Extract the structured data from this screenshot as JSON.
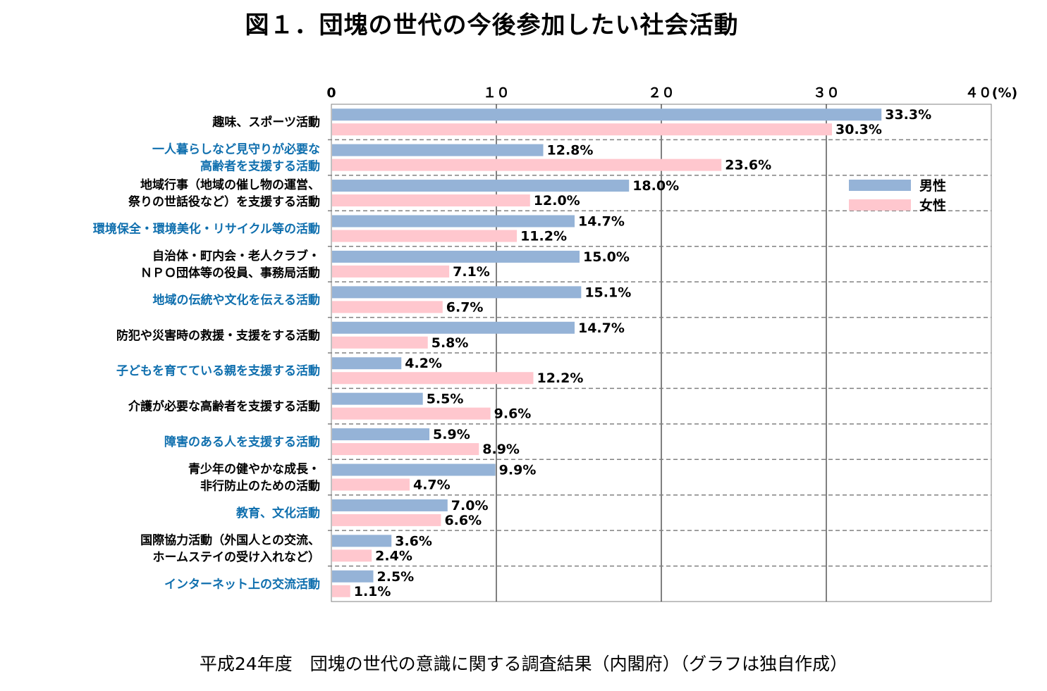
{
  "title": "図１．団塊の世代の今後参加したい社会活動",
  "source": "平成24年度　団塊の世代の意識に関する調査結果（内閣府）（グラフは独自作成）",
  "chart_data": {
    "type": "bar",
    "orientation": "horizontal",
    "xlim": [
      0,
      40
    ],
    "ticks": [
      0,
      10,
      20,
      30,
      40
    ],
    "tick_labels": [
      "0",
      "１０",
      "２０",
      "３０",
      "４０(%)"
    ],
    "grid": true,
    "legend_position": "right",
    "categories": [
      {
        "lines": [
          "趣味、スポーツ活動"
        ],
        "color": "#000000"
      },
      {
        "lines": [
          "一人暮らしなど見守りが必要な",
          "高齢者を支援する活動"
        ],
        "color": "#0F6FAE"
      },
      {
        "lines": [
          "地域行事（地域の催し物の運営、",
          "祭りの世話役など）を支援する活動"
        ],
        "color": "#000000"
      },
      {
        "lines": [
          "環境保全・環境美化・リサイクル等の活動"
        ],
        "color": "#0F6FAE"
      },
      {
        "lines": [
          "自治体・町内会・老人クラブ・",
          "ＮＰＯ団体等の役員、事務局活動"
        ],
        "color": "#000000"
      },
      {
        "lines": [
          "地域の伝統や文化を伝える活動"
        ],
        "color": "#0F6FAE"
      },
      {
        "lines": [
          "防犯や災害時の救援・支援をする活動"
        ],
        "color": "#000000"
      },
      {
        "lines": [
          "子どもを育てている親を支援する活動"
        ],
        "color": "#0F6FAE"
      },
      {
        "lines": [
          "介護が必要な高齢者を支援する活動"
        ],
        "color": "#000000"
      },
      {
        "lines": [
          "障害のある人を支援する活動"
        ],
        "color": "#0F6FAE"
      },
      {
        "lines": [
          "青少年の健やかな成長・",
          "非行防止のための活動"
        ],
        "color": "#000000"
      },
      {
        "lines": [
          "教育、文化活動"
        ],
        "color": "#0F6FAE"
      },
      {
        "lines": [
          "国際協力活動（外国人との交流、",
          "ホームステイの受け入れなど）"
        ],
        "color": "#000000"
      },
      {
        "lines": [
          "インターネット上の交流活動"
        ],
        "color": "#0F6FAE"
      }
    ],
    "series": [
      {
        "name": "男性",
        "color": "#95B3D7",
        "values": [
          33.3,
          12.8,
          18.0,
          14.7,
          15.0,
          15.1,
          14.7,
          4.2,
          5.5,
          5.9,
          9.9,
          7.0,
          3.6,
          2.5
        ],
        "labels": [
          "33.3%",
          "12.8%",
          "18.0%",
          "14.7%",
          "15.0%",
          "15.1%",
          "14.7%",
          "4.2%",
          "5.5%",
          "5.9%",
          "9.9%",
          "7.0%",
          "3.6%",
          "2.5%"
        ]
      },
      {
        "name": "女性",
        "color": "#FFC7CE",
        "values": [
          30.3,
          23.6,
          12.0,
          11.2,
          7.1,
          6.7,
          5.8,
          12.2,
          9.6,
          8.9,
          4.7,
          6.6,
          2.4,
          1.1
        ],
        "labels": [
          "30.3%",
          "23.6%",
          "12.0%",
          "11.2%",
          "7.1%",
          "6.7%",
          "5.8%",
          "12.2%",
          "9.6%",
          "8.9%",
          "4.7%",
          "6.6%",
          "2.4%",
          "1.1%"
        ]
      }
    ]
  }
}
